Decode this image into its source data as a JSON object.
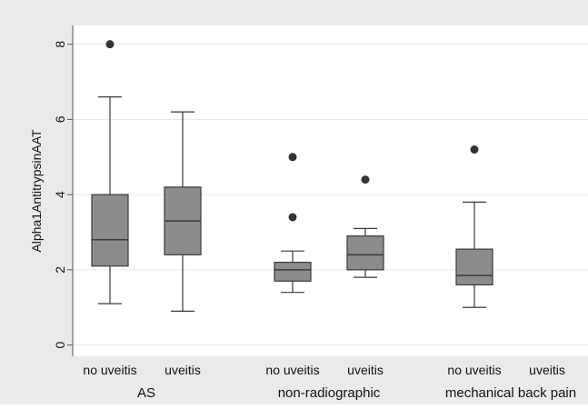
{
  "chart_data": {
    "type": "box",
    "title": "",
    "ylabel": "Alpha1AntitrypsinAAT",
    "xlabel": "",
    "ylim": [
      -0.3,
      8.5
    ],
    "yticks": [
      0,
      2,
      4,
      6,
      8
    ],
    "ytick_labels": [
      "0",
      "2",
      "4",
      "6",
      "8"
    ],
    "grid": true,
    "colors": {
      "outer_background": "#eaeaea",
      "plot_background": "#ffffff",
      "box_fill": "#8c8c8c",
      "box_stroke": "#3a3a3a",
      "outlier": "#333333",
      "grid": "#e6e6e6",
      "axis": "#555555"
    },
    "groups": [
      {
        "label": "AS",
        "boxes": [
          {
            "category": "no uveitis",
            "whisker_low": 1.1,
            "q1": 2.1,
            "median": 2.8,
            "q3": 4.0,
            "whisker_high": 6.6,
            "outliers": [
              8.0
            ]
          },
          {
            "category": "uveitis",
            "whisker_low": 0.9,
            "q1": 2.4,
            "median": 3.3,
            "q3": 4.2,
            "whisker_high": 6.2,
            "outliers": []
          }
        ]
      },
      {
        "label": "non-radiographic",
        "boxes": [
          {
            "category": "no uveitis",
            "whisker_low": 1.4,
            "q1": 1.7,
            "median": 2.0,
            "q3": 2.2,
            "whisker_high": 2.5,
            "outliers": [
              3.4,
              5.0
            ]
          },
          {
            "category": "uveitis",
            "whisker_low": 1.8,
            "q1": 2.0,
            "median": 2.4,
            "q3": 2.9,
            "whisker_high": 3.1,
            "outliers": [
              4.4
            ]
          }
        ]
      },
      {
        "label": "mechanical back pain",
        "boxes": [
          {
            "category": "no uveitis",
            "whisker_low": 1.0,
            "q1": 1.6,
            "median": 1.85,
            "q3": 2.55,
            "whisker_high": 3.8,
            "outliers": [
              5.2
            ]
          },
          {
            "category": "uveitis",
            "whisker_low": null,
            "q1": null,
            "median": null,
            "q3": null,
            "whisker_high": null,
            "outliers": []
          }
        ]
      }
    ]
  }
}
